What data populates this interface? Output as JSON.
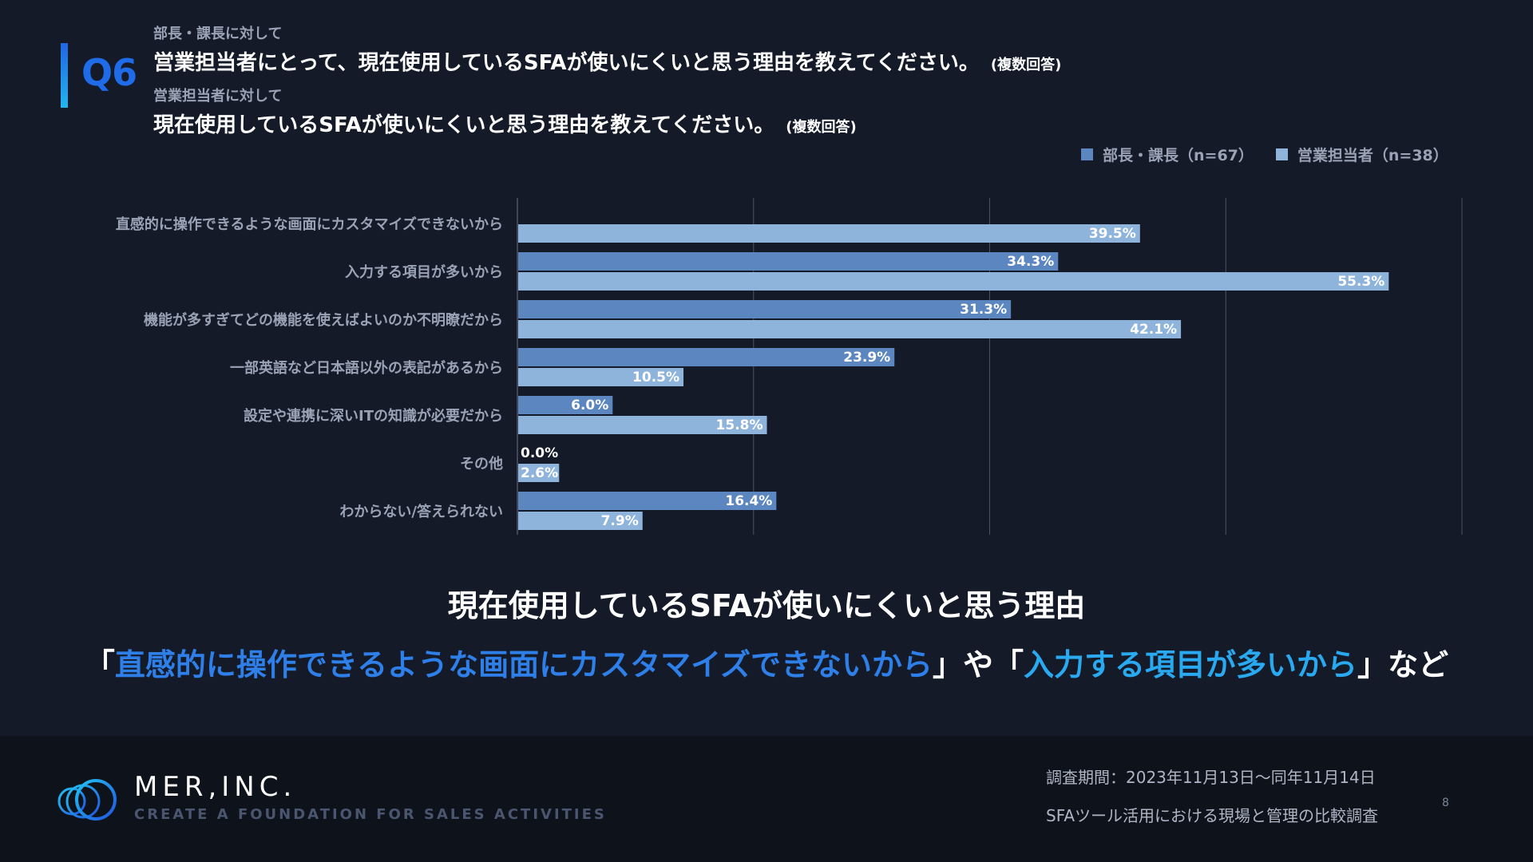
{
  "header": {
    "q_label": "Q6",
    "q1_target": "部長・課長に対して",
    "q1_text": "営業担当者にとって、現在使用しているSFAが使いにくいと思う理由を教えてください。",
    "q1_note": "(複数回答)",
    "q2_target": "営業担当者に対して",
    "q2_text": "現在使用しているSFAが使いにくいと思う理由を教えてください。",
    "q2_note": "(複数回答)"
  },
  "legend": [
    {
      "label": "部長・課長（n=67）",
      "color": "#5b86bf"
    },
    {
      "label": "営業担当者（n=38）",
      "color": "#8fb4dc"
    }
  ],
  "chart_data": {
    "type": "bar",
    "orientation": "horizontal",
    "categories": [
      "直感的に操作できるような画面にカスタマイズできないから",
      "入力する項目が多いから",
      "機能が多すぎてどの機能を使えばよいのか不明瞭だから",
      "一部英語など日本語以外の表記があるから",
      "設定や連携に深いITの知識が必要だから",
      "その他",
      "わからない/答えられない"
    ],
    "series": [
      {
        "name": "部長・課長（n=67）",
        "values": [
          null,
          34.3,
          31.3,
          23.9,
          6.0,
          0.0,
          16.4
        ],
        "labels": [
          "",
          "34.3%",
          "31.3%",
          "23.9%",
          "6.0%",
          "0.0%",
          "16.4%"
        ]
      },
      {
        "name": "営業担当者（n=38）",
        "values": [
          39.5,
          55.3,
          42.1,
          10.5,
          15.8,
          2.6,
          7.9
        ],
        "labels": [
          "39.5%",
          "55.3%",
          "42.1%",
          "10.5%",
          "15.8%",
          "2.6%",
          "7.9%"
        ]
      }
    ],
    "xlim": [
      0,
      60
    ],
    "grid": true,
    "legend_position": "top-right"
  },
  "summary": {
    "title": "現在使用しているSFAが使いにくいと思う理由",
    "open1": "「",
    "highlight1": "直感的に操作できるような画面にカスタマイズできないから",
    "middle": "」や「",
    "highlight2": "入力する項目が多いから",
    "close": "」など"
  },
  "footer": {
    "company": "MER,INC.",
    "tagline": "CREATE A FOUNDATION FOR SALES ACTIVITIES",
    "survey_period": "調査期間：2023年11月13日〜同年11月14日",
    "survey_title": "SFAツール活用における現場と管理の比較調査",
    "page_number": "8"
  }
}
